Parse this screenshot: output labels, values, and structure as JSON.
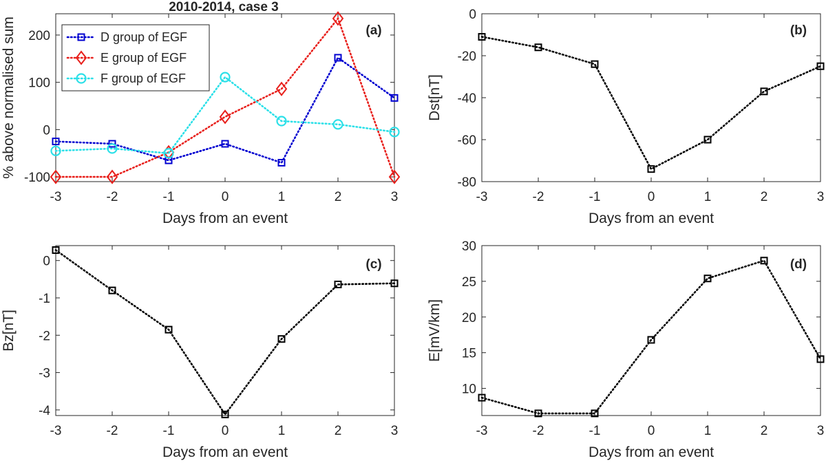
{
  "chart_data": [
    {
      "id": "a",
      "type": "line",
      "title": "2010-2014, case 3",
      "panel_tag": "(a)",
      "xlabel": "Days from an event",
      "ylabel": "% above normalised sum",
      "x": [
        -3,
        -2,
        -1,
        0,
        1,
        2,
        3
      ],
      "xticks": [
        "-3",
        "-2",
        "-1",
        "0",
        "1",
        "2",
        "3"
      ],
      "xlim": [
        -3,
        3
      ],
      "ylim": [
        -110,
        245
      ],
      "yticks": [
        -100,
        0,
        100,
        200
      ],
      "ytick_labels": [
        "-100",
        "0",
        "100",
        "200"
      ],
      "legend": {
        "position": "top-left"
      },
      "series": [
        {
          "name": "D group of EGF",
          "color": "#0000d0",
          "marker": "square",
          "values": [
            -25,
            -30,
            -65,
            -30,
            -70,
            152,
            67
          ]
        },
        {
          "name": "E group of EGF",
          "color": "#e8201c",
          "marker": "diamond",
          "values": [
            -100,
            -100,
            -48,
            27,
            86,
            235,
            -100
          ]
        },
        {
          "name": "F group of EGF",
          "color": "#2ce0e8",
          "marker": "circle",
          "values": [
            -45,
            -40,
            -50,
            111,
            18,
            11,
            -5
          ]
        }
      ]
    },
    {
      "id": "b",
      "type": "line",
      "panel_tag": "(b)",
      "xlabel": "Days from an event",
      "ylabel": "Dst[nT]",
      "x": [
        -3,
        -2,
        -1,
        0,
        1,
        2,
        3
      ],
      "xticks": [
        "-3",
        "-2",
        "-1",
        "0",
        "1",
        "2",
        "3"
      ],
      "xlim": [
        -3,
        3
      ],
      "ylim": [
        -80,
        0
      ],
      "yticks": [
        -80,
        -60,
        -40,
        -20,
        0
      ],
      "ytick_labels": [
        "-80",
        "-60",
        "-40",
        "-20",
        "0"
      ],
      "series": [
        {
          "name": "Dst",
          "color": "#000000",
          "marker": "square",
          "values": [
            -11,
            -16,
            -24,
            -74,
            -60,
            -37,
            -25
          ]
        }
      ]
    },
    {
      "id": "c",
      "type": "line",
      "panel_tag": "(c)",
      "xlabel": "Days from an event",
      "ylabel": "Bz[nT]",
      "x": [
        -3,
        -2,
        -1,
        0,
        1,
        2,
        3
      ],
      "xticks": [
        "-3",
        "-2",
        "-1",
        "0",
        "1",
        "2",
        "3"
      ],
      "xlim": [
        -3,
        3
      ],
      "ylim": [
        -4.15,
        0.4
      ],
      "yticks": [
        -4,
        -3,
        -2,
        -1,
        0
      ],
      "ytick_labels": [
        "-4",
        "-3",
        "-2",
        "-1",
        "0"
      ],
      "series": [
        {
          "name": "Bz",
          "color": "#000000",
          "marker": "square",
          "values": [
            0.28,
            -0.8,
            -1.85,
            -4.12,
            -2.1,
            -0.64,
            -0.61
          ]
        }
      ]
    },
    {
      "id": "d",
      "type": "line",
      "panel_tag": "(d)",
      "xlabel": "Days from an event",
      "ylabel": "E[mV/km]",
      "x": [
        -3,
        -2,
        -1,
        0,
        1,
        2,
        3
      ],
      "xticks": [
        "-3",
        "-2",
        "-1",
        "0",
        "1",
        "2",
        "3"
      ],
      "xlim": [
        -3,
        3
      ],
      "ylim": [
        6.2,
        30
      ],
      "yticks": [
        10,
        15,
        20,
        25,
        30
      ],
      "ytick_labels": [
        "10",
        "15",
        "20",
        "25",
        "30"
      ],
      "series": [
        {
          "name": "E",
          "color": "#000000",
          "marker": "square",
          "values": [
            8.7,
            6.5,
            6.5,
            16.8,
            25.4,
            27.9,
            14.1
          ]
        }
      ]
    }
  ]
}
